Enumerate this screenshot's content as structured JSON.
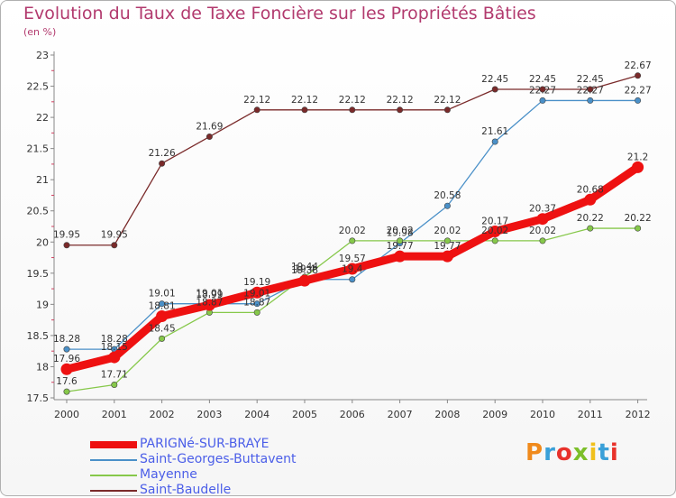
{
  "header": {
    "title": "Evolution du Taux de Taxe Foncière sur les Propriétés Bâties",
    "unit": "(en %)"
  },
  "logo": {
    "text": "Proxiti",
    "colors": [
      "#f08a1c",
      "#3aa0d8",
      "#e8322b",
      "#7cbf2a",
      "#f0c01c",
      "#3aa0d8",
      "#e8322b"
    ]
  },
  "chart_data": {
    "type": "line",
    "title": "Evolution du Taux de Taxe Foncière sur les Propriétés Bâties",
    "ylabel": "(en %)",
    "xlabel": "",
    "x": [
      "2000",
      "2001",
      "2002",
      "2003",
      "2004",
      "2005",
      "2006",
      "2007",
      "2008",
      "2009",
      "2010",
      "2011",
      "2012"
    ],
    "ylim": [
      17.5,
      23
    ],
    "yticks": [
      "17.5",
      "18",
      "18.5",
      "19",
      "19.5",
      "20",
      "20.5",
      "21",
      "21.5",
      "22",
      "22.5",
      "23"
    ],
    "grid": false,
    "legend_position": "bottom",
    "series": [
      {
        "name": "Saint-Baudelle",
        "color": "#7a2a2a",
        "style": "thin",
        "values": [
          19.95,
          19.95,
          21.26,
          21.69,
          22.12,
          22.12,
          22.12,
          22.12,
          22.12,
          22.45,
          22.45,
          22.45,
          22.67
        ],
        "labels": [
          "19.95",
          "19.95",
          "21.26",
          "21.69",
          "22.12",
          "22.12",
          "22.12",
          "22.12",
          "22.12",
          "22.45",
          "22.45",
          "22.45",
          "22.67"
        ]
      },
      {
        "name": "Saint-Georges-Buttavent",
        "color": "#4a90c8",
        "style": "thin",
        "values": [
          18.28,
          18.28,
          19.01,
          19.01,
          19.01,
          19.4,
          19.4,
          19.98,
          20.58,
          21.61,
          22.27,
          22.27,
          22.27
        ],
        "labels": [
          "18.28",
          "18.28",
          "19.01",
          "19.01",
          "19.01",
          "19.4",
          "19.4",
          "19.98",
          "20.58",
          "21.61",
          "22.27",
          "22.27",
          "22.27"
        ]
      },
      {
        "name": "Mayenne",
        "color": "#86c84a",
        "style": "thin",
        "values": [
          17.6,
          17.71,
          18.45,
          18.87,
          18.87,
          19.44,
          20.02,
          20.02,
          20.02,
          20.02,
          20.02,
          20.22,
          20.22
        ],
        "labels": [
          "17.6",
          "17.71",
          "18.45",
          "18.87",
          "18.87",
          "19.44",
          "20.02",
          "20.02",
          "20.02",
          "20.02",
          "20.02",
          "20.22",
          "20.22"
        ]
      },
      {
        "name": "PARIGNé-SUR-BRAYE",
        "color": "#ee1111",
        "style": "thick",
        "values": [
          17.96,
          18.15,
          18.81,
          18.99,
          19.19,
          19.38,
          19.57,
          19.77,
          19.77,
          20.17,
          20.37,
          20.68,
          21.2
        ],
        "labels": [
          "17.96",
          "18.15",
          "18.81",
          "18.99",
          "19.19",
          "19.38",
          "19.57",
          "19.77",
          "19.77",
          "20.17",
          "20.37",
          "20.68",
          "21.2"
        ]
      }
    ]
  },
  "legend": [
    {
      "label": "PARIGNé-SUR-BRAYE",
      "color": "#ee1111",
      "style": "thick"
    },
    {
      "label": "Saint-Georges-Buttavent",
      "color": "#4a90c8",
      "style": "thin"
    },
    {
      "label": "Mayenne",
      "color": "#86c84a",
      "style": "thin"
    },
    {
      "label": "Saint-Baudelle",
      "color": "#7a2a2a",
      "style": "thin"
    }
  ]
}
